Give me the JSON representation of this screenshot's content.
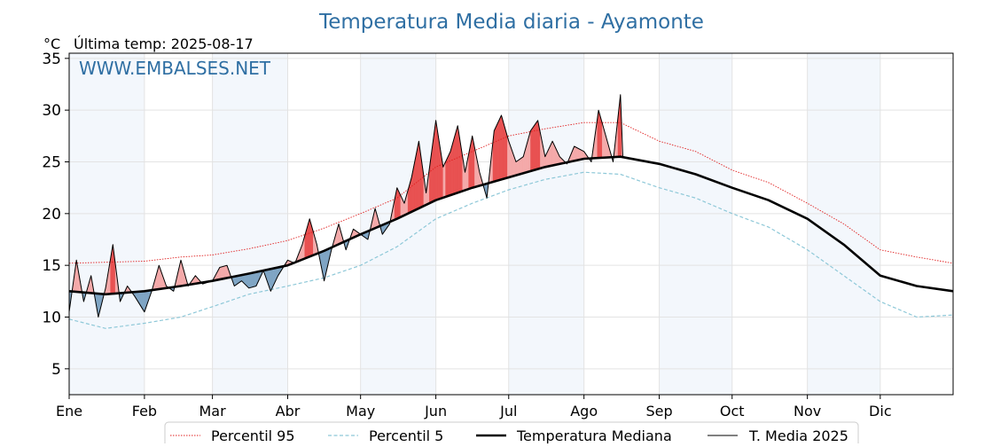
{
  "chart_data": {
    "type": "line",
    "title": "Temperatura Media diaria - Ayamonte",
    "unit_label": "°C",
    "subtitle": "Última temp: 2025-08-17",
    "watermark": "WWW.EMBALSES.NET",
    "xlim": [
      "2025-01-01",
      "2025-12-31"
    ],
    "ylim": [
      2.5,
      35.5
    ],
    "y_ticks": [
      5,
      10,
      15,
      20,
      25,
      30,
      35
    ],
    "month_ticks": [
      {
        "label": "Ene",
        "date": "2025-01-01"
      },
      {
        "label": "Feb",
        "date": "2025-02-01"
      },
      {
        "label": "Mar",
        "date": "2025-03-01"
      },
      {
        "label": "Abr",
        "date": "2025-04-01"
      },
      {
        "label": "May",
        "date": "2025-05-01"
      },
      {
        "label": "Jun",
        "date": "2025-06-01"
      },
      {
        "label": "Jul",
        "date": "2025-07-01"
      },
      {
        "label": "Ago",
        "date": "2025-08-01"
      },
      {
        "label": "Sep",
        "date": "2025-09-01"
      },
      {
        "label": "Oct",
        "date": "2025-10-01"
      },
      {
        "label": "Nov",
        "date": "2025-11-01"
      },
      {
        "label": "Dic",
        "date": "2025-12-01"
      }
    ],
    "grid": true,
    "legend_position": "bottom",
    "colors": {
      "title": "#2f6fa3",
      "p95": "#e02020",
      "p5": "#8ec8d8",
      "median": "#000000",
      "media2025": "#000000",
      "above_fill": "#f4a9a9",
      "above_strong": "#e85050",
      "below_fill": "#7fa5c4",
      "band": "#f3f7fc"
    },
    "series": [
      {
        "name": "Percentil 95",
        "style": "dotted",
        "x": [
          "2025-01-01",
          "2025-01-16",
          "2025-02-01",
          "2025-02-16",
          "2025-03-01",
          "2025-03-16",
          "2025-04-01",
          "2025-04-16",
          "2025-05-01",
          "2025-05-16",
          "2025-06-01",
          "2025-06-16",
          "2025-07-01",
          "2025-07-16",
          "2025-08-01",
          "2025-08-16",
          "2025-09-01",
          "2025-09-16",
          "2025-10-01",
          "2025-10-16",
          "2025-11-01",
          "2025-11-16",
          "2025-12-01",
          "2025-12-16",
          "2025-12-31"
        ],
        "y": [
          15.2,
          15.3,
          15.4,
          15.8,
          16.0,
          16.6,
          17.4,
          18.6,
          20.0,
          21.5,
          24.5,
          26.0,
          27.5,
          28.2,
          28.8,
          28.8,
          27.0,
          26.0,
          24.2,
          23.0,
          21.0,
          19.0,
          16.5,
          15.8,
          15.2
        ]
      },
      {
        "name": "Percentil 5",
        "style": "dashed",
        "x": [
          "2025-01-01",
          "2025-01-16",
          "2025-02-01",
          "2025-02-16",
          "2025-03-01",
          "2025-03-16",
          "2025-04-01",
          "2025-04-16",
          "2025-05-01",
          "2025-05-16",
          "2025-06-01",
          "2025-06-16",
          "2025-07-01",
          "2025-07-16",
          "2025-08-01",
          "2025-08-16",
          "2025-09-01",
          "2025-09-16",
          "2025-10-01",
          "2025-10-16",
          "2025-11-01",
          "2025-11-16",
          "2025-12-01",
          "2025-12-16",
          "2025-12-31"
        ],
        "y": [
          9.8,
          8.9,
          9.4,
          10.0,
          11.0,
          12.2,
          13.0,
          13.8,
          15.0,
          16.8,
          19.5,
          21.0,
          22.3,
          23.3,
          24.0,
          23.8,
          22.5,
          21.5,
          20.0,
          18.7,
          16.5,
          14.0,
          11.5,
          10.0,
          10.2
        ]
      },
      {
        "name": "Temperatura Mediana",
        "style": "thick",
        "x": [
          "2025-01-01",
          "2025-01-16",
          "2025-02-01",
          "2025-02-16",
          "2025-03-01",
          "2025-03-16",
          "2025-04-01",
          "2025-04-16",
          "2025-05-01",
          "2025-05-16",
          "2025-06-01",
          "2025-06-16",
          "2025-07-01",
          "2025-07-16",
          "2025-08-01",
          "2025-08-16",
          "2025-09-01",
          "2025-09-16",
          "2025-10-01",
          "2025-10-16",
          "2025-11-01",
          "2025-11-16",
          "2025-12-01",
          "2025-12-16",
          "2025-12-31"
        ],
        "y": [
          12.5,
          12.2,
          12.5,
          13.0,
          13.5,
          14.2,
          15.0,
          16.4,
          18.0,
          19.5,
          21.3,
          22.5,
          23.5,
          24.5,
          25.3,
          25.5,
          24.8,
          23.8,
          22.5,
          21.3,
          19.5,
          17.0,
          14.0,
          13.0,
          12.5
        ]
      },
      {
        "name": "T. Media 2025",
        "style": "thin",
        "x": [
          "2025-01-01",
          "2025-01-04",
          "2025-01-07",
          "2025-01-10",
          "2025-01-13",
          "2025-01-16",
          "2025-01-19",
          "2025-01-22",
          "2025-01-25",
          "2025-01-28",
          "2025-02-01",
          "2025-02-04",
          "2025-02-07",
          "2025-02-10",
          "2025-02-13",
          "2025-02-16",
          "2025-02-19",
          "2025-02-22",
          "2025-02-25",
          "2025-03-01",
          "2025-03-04",
          "2025-03-07",
          "2025-03-10",
          "2025-03-13",
          "2025-03-16",
          "2025-03-19",
          "2025-03-22",
          "2025-03-25",
          "2025-03-28",
          "2025-04-01",
          "2025-04-04",
          "2025-04-07",
          "2025-04-10",
          "2025-04-13",
          "2025-04-16",
          "2025-04-19",
          "2025-04-22",
          "2025-04-25",
          "2025-04-28",
          "2025-05-01",
          "2025-05-04",
          "2025-05-07",
          "2025-05-10",
          "2025-05-13",
          "2025-05-16",
          "2025-05-19",
          "2025-05-22",
          "2025-05-25",
          "2025-05-28",
          "2025-06-01",
          "2025-06-04",
          "2025-06-07",
          "2025-06-10",
          "2025-06-13",
          "2025-06-16",
          "2025-06-19",
          "2025-06-22",
          "2025-06-25",
          "2025-06-28",
          "2025-07-01",
          "2025-07-04",
          "2025-07-07",
          "2025-07-10",
          "2025-07-13",
          "2025-07-16",
          "2025-07-19",
          "2025-07-22",
          "2025-07-25",
          "2025-07-28",
          "2025-08-01",
          "2025-08-04",
          "2025-08-07",
          "2025-08-10",
          "2025-08-13",
          "2025-08-16",
          "2025-08-17"
        ],
        "y": [
          10.5,
          15.5,
          11.5,
          14.0,
          10.0,
          12.8,
          17.0,
          11.5,
          13.0,
          12.0,
          10.5,
          12.5,
          15.0,
          13.0,
          12.5,
          15.5,
          13.0,
          14.0,
          13.2,
          13.5,
          14.8,
          15.0,
          13.0,
          13.5,
          12.8,
          13.0,
          14.5,
          12.5,
          14.0,
          15.5,
          15.2,
          17.0,
          19.5,
          17.0,
          13.5,
          16.5,
          19.0,
          16.5,
          18.5,
          18.0,
          17.5,
          20.5,
          18.0,
          19.0,
          22.5,
          21.0,
          23.5,
          27.0,
          22.0,
          29.0,
          24.5,
          26.0,
          28.5,
          24.0,
          27.5,
          24.0,
          21.5,
          28.0,
          29.5,
          27.0,
          25.0,
          25.5,
          28.0,
          29.0,
          25.5,
          27.0,
          25.5,
          24.8,
          26.5,
          26.0,
          25.0,
          30.0,
          27.5,
          25.0,
          31.5,
          25.5
        ]
      }
    ]
  }
}
